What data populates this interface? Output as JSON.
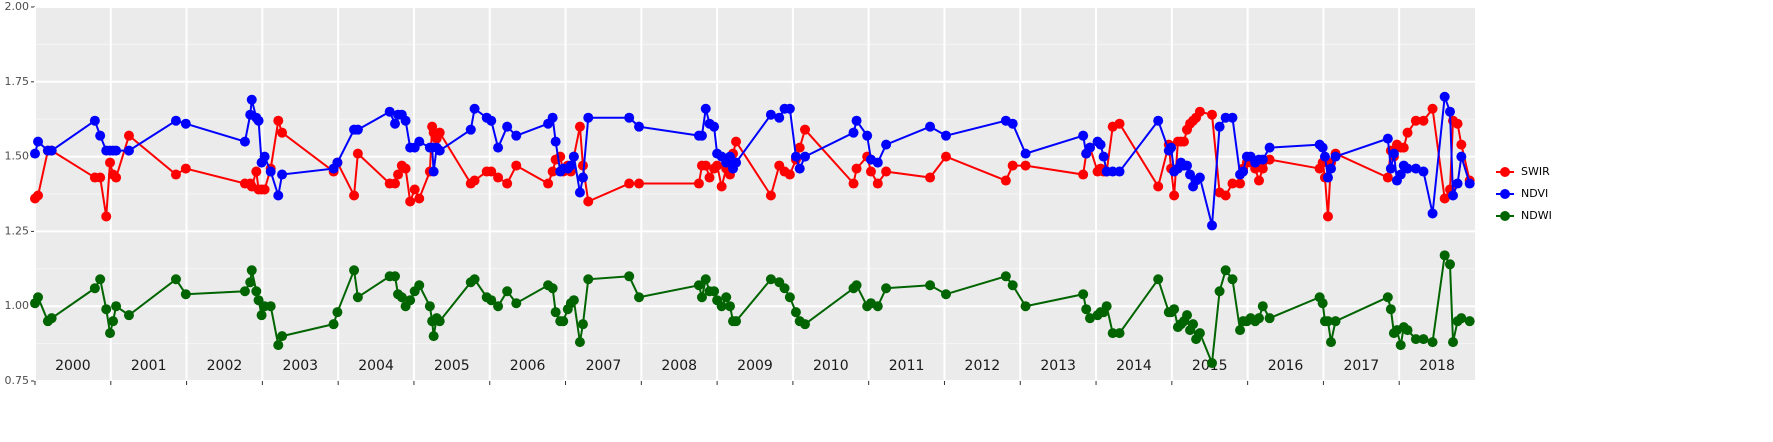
{
  "chart_data": {
    "type": "line",
    "x": [
      2000.0,
      2000.04,
      2000.17,
      2000.22,
      2000.79,
      2000.86,
      2000.94,
      2000.99,
      2001.03,
      2001.07,
      2001.24,
      2001.86,
      2001.99,
      2002.77,
      2002.84,
      2002.86,
      2002.92,
      2002.95,
      2002.99,
      2003.03,
      2003.11,
      2003.21,
      2003.26,
      2003.94,
      2003.99,
      2004.21,
      2004.26,
      2004.68,
      2004.75,
      2004.79,
      2004.84,
      2004.89,
      2004.95,
      2005.01,
      2005.07,
      2005.21,
      2005.24,
      2005.26,
      2005.3,
      2005.34,
      2005.75,
      2005.8,
      2005.96,
      2006.02,
      2006.11,
      2006.23,
      2006.35,
      2006.77,
      2006.83,
      2006.87,
      2006.93,
      2006.97,
      2007.03,
      2007.07,
      2007.11,
      2007.19,
      2007.23,
      2007.3,
      2007.84,
      2007.97,
      2008.76,
      2008.8,
      2008.85,
      2008.9,
      2008.96,
      2009.0,
      2009.06,
      2009.12,
      2009.17,
      2009.21,
      2009.25,
      2009.71,
      2009.82,
      2009.89,
      2009.96,
      2010.04,
      2010.09,
      2010.16,
      2010.8,
      2010.84,
      2010.98,
      2011.03,
      2011.12,
      2011.23,
      2011.81,
      2012.02,
      2012.81,
      2012.9,
      2013.07,
      2013.83,
      2013.87,
      2013.92,
      2014.02,
      2014.06,
      2014.1,
      2014.14,
      2014.22,
      2014.31,
      2014.82,
      2014.96,
      2014.99,
      2015.03,
      2015.08,
      2015.12,
      2015.16,
      2015.2,
      2015.24,
      2015.28,
      2015.32,
      2015.37,
      2015.53,
      2015.63,
      2015.71,
      2015.8,
      2015.9,
      2015.94,
      2015.99,
      2016.04,
      2016.1,
      2016.15,
      2016.2,
      2016.29,
      2016.95,
      2016.99,
      2017.02,
      2017.06,
      2017.1,
      2017.16,
      2017.85,
      2017.89,
      2017.93,
      2017.97,
      2018.02,
      2018.06,
      2018.11,
      2018.22,
      2018.32,
      2018.44,
      2018.6,
      2018.67,
      2018.71,
      2018.77,
      2018.82,
      2018.93
    ],
    "series": [
      {
        "name": "SWIR",
        "color": "#ff0000",
        "values": [
          1.36,
          1.37,
          1.52,
          1.52,
          1.43,
          1.43,
          1.3,
          1.48,
          1.44,
          1.43,
          1.57,
          1.44,
          1.46,
          1.41,
          1.41,
          1.4,
          1.45,
          1.39,
          1.39,
          1.39,
          1.46,
          1.62,
          1.58,
          1.45,
          1.48,
          1.37,
          1.51,
          1.41,
          1.41,
          1.44,
          1.47,
          1.46,
          1.35,
          1.39,
          1.36,
          1.45,
          1.6,
          1.58,
          1.56,
          1.58,
          1.41,
          1.42,
          1.45,
          1.45,
          1.43,
          1.41,
          1.47,
          1.41,
          1.45,
          1.49,
          1.5,
          1.45,
          1.47,
          1.45,
          1.5,
          1.6,
          1.47,
          1.35,
          1.41,
          1.41,
          1.41,
          1.47,
          1.47,
          1.43,
          1.46,
          1.47,
          1.4,
          1.46,
          1.44,
          1.51,
          1.55,
          1.37,
          1.47,
          1.45,
          1.44,
          1.49,
          1.53,
          1.59,
          1.41,
          1.46,
          1.5,
          1.45,
          1.41,
          1.45,
          1.43,
          1.5,
          1.42,
          1.47,
          1.47,
          1.44,
          1.51,
          1.53,
          1.45,
          1.46,
          1.45,
          1.45,
          1.6,
          1.61,
          1.4,
          1.54,
          1.46,
          1.37,
          1.55,
          1.55,
          1.55,
          1.59,
          1.61,
          1.62,
          1.63,
          1.65,
          1.64,
          1.38,
          1.37,
          1.41,
          1.41,
          1.46,
          1.48,
          1.48,
          1.46,
          1.42,
          1.46,
          1.49,
          1.46,
          1.48,
          1.43,
          1.3,
          1.48,
          1.51,
          1.43,
          1.52,
          1.5,
          1.54,
          1.53,
          1.53,
          1.58,
          1.62,
          1.62,
          1.66,
          1.36,
          1.39,
          1.62,
          1.61,
          1.54,
          1.42
        ]
      },
      {
        "name": "NDVI",
        "color": "#0000ff",
        "values": [
          1.51,
          1.55,
          1.52,
          1.52,
          1.62,
          1.57,
          1.52,
          1.52,
          1.52,
          1.52,
          1.52,
          1.62,
          1.61,
          1.55,
          1.64,
          1.69,
          1.63,
          1.62,
          1.48,
          1.5,
          1.45,
          1.37,
          1.44,
          1.46,
          1.48,
          1.59,
          1.59,
          1.65,
          1.61,
          1.64,
          1.64,
          1.62,
          1.53,
          1.53,
          1.55,
          1.53,
          1.53,
          1.45,
          1.53,
          1.52,
          1.59,
          1.66,
          1.63,
          1.62,
          1.53,
          1.6,
          1.57,
          1.61,
          1.63,
          1.55,
          1.45,
          1.46,
          1.46,
          1.47,
          1.5,
          1.38,
          1.43,
          1.63,
          1.63,
          1.6,
          1.57,
          1.57,
          1.66,
          1.61,
          1.6,
          1.51,
          1.5,
          1.48,
          1.5,
          1.46,
          1.48,
          1.64,
          1.63,
          1.66,
          1.66,
          1.5,
          1.46,
          1.5,
          1.58,
          1.62,
          1.57,
          1.49,
          1.48,
          1.54,
          1.6,
          1.57,
          1.62,
          1.61,
          1.51,
          1.57,
          1.51,
          1.53,
          1.55,
          1.54,
          1.5,
          1.45,
          1.45,
          1.45,
          1.62,
          1.52,
          1.53,
          1.45,
          1.46,
          1.48,
          1.47,
          1.47,
          1.44,
          1.4,
          1.42,
          1.43,
          1.27,
          1.6,
          1.63,
          1.63,
          1.44,
          1.45,
          1.5,
          1.5,
          1.48,
          1.49,
          1.49,
          1.53,
          1.54,
          1.53,
          1.5,
          1.43,
          1.46,
          1.5,
          1.56,
          1.46,
          1.51,
          1.42,
          1.44,
          1.47,
          1.46,
          1.46,
          1.45,
          1.31,
          1.7,
          1.65,
          1.37,
          1.41,
          1.5,
          1.41
        ]
      },
      {
        "name": "NDWI",
        "color": "#006400",
        "values": [
          1.01,
          1.03,
          0.95,
          0.96,
          1.06,
          1.09,
          0.99,
          0.91,
          0.95,
          1.0,
          0.97,
          1.09,
          1.04,
          1.05,
          1.08,
          1.12,
          1.05,
          1.02,
          0.97,
          1.0,
          1.0,
          0.87,
          0.9,
          0.94,
          0.98,
          1.12,
          1.03,
          1.1,
          1.1,
          1.04,
          1.03,
          1.0,
          1.02,
          1.05,
          1.07,
          1.0,
          0.95,
          0.9,
          0.96,
          0.95,
          1.08,
          1.09,
          1.03,
          1.02,
          1.0,
          1.05,
          1.01,
          1.07,
          1.06,
          0.98,
          0.95,
          0.95,
          0.99,
          1.01,
          1.02,
          0.88,
          0.94,
          1.09,
          1.1,
          1.03,
          1.07,
          1.03,
          1.09,
          1.05,
          1.05,
          1.02,
          1.0,
          1.03,
          1.0,
          0.95,
          0.95,
          1.09,
          1.08,
          1.06,
          1.03,
          0.98,
          0.95,
          0.94,
          1.06,
          1.07,
          1.0,
          1.01,
          1.0,
          1.06,
          1.07,
          1.04,
          1.1,
          1.07,
          1.0,
          1.04,
          0.99,
          0.96,
          0.97,
          0.98,
          0.98,
          1.0,
          0.91,
          0.91,
          1.09,
          0.98,
          0.98,
          0.99,
          0.93,
          0.94,
          0.95,
          0.97,
          0.92,
          0.94,
          0.89,
          0.91,
          0.81,
          1.05,
          1.12,
          1.09,
          0.92,
          0.95,
          0.95,
          0.96,
          0.95,
          0.96,
          1.0,
          0.96,
          1.03,
          1.01,
          0.95,
          0.95,
          0.88,
          0.95,
          1.03,
          0.99,
          0.91,
          0.92,
          0.87,
          0.93,
          0.92,
          0.89,
          0.89,
          0.88,
          1.17,
          1.14,
          0.88,
          0.95,
          0.96,
          0.95
        ]
      }
    ],
    "xlim": [
      2000,
      2019
    ],
    "xticks": [
      {
        "value": 2000,
        "label": "2000"
      },
      {
        "value": 2001,
        "label": "2001"
      },
      {
        "value": 2002,
        "label": "2002"
      },
      {
        "value": 2003,
        "label": "2003"
      },
      {
        "value": 2004,
        "label": "2004"
      },
      {
        "value": 2005,
        "label": "2005"
      },
      {
        "value": 2006,
        "label": "2006"
      },
      {
        "value": 2007,
        "label": "2007"
      },
      {
        "value": 2008,
        "label": "2008"
      },
      {
        "value": 2009,
        "label": "2009"
      },
      {
        "value": 2010,
        "label": "2010"
      },
      {
        "value": 2011,
        "label": "2011"
      },
      {
        "value": 2012,
        "label": "2012"
      },
      {
        "value": 2013,
        "label": "2013"
      },
      {
        "value": 2014,
        "label": "2014"
      },
      {
        "value": 2015,
        "label": "2015"
      },
      {
        "value": 2016,
        "label": "2016"
      },
      {
        "value": 2017,
        "label": "2017"
      },
      {
        "value": 2018,
        "label": "2018"
      }
    ],
    "ylim": [
      0.75,
      2.0
    ],
    "yticks": [
      0.75,
      {
        "value": 1.0,
        "label": "1.00"
      },
      1.25,
      {
        "value": 1.5,
        "label": "1.50"
      },
      1.75,
      {
        "value": 2.0,
        "label": "2.00"
      }
    ],
    "grid": true,
    "legend": "right"
  }
}
